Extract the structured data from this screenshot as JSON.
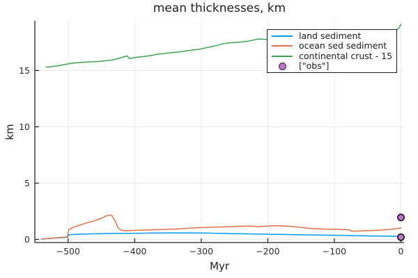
{
  "title": "mean thicknesses, km",
  "xlabel": "Myr",
  "ylabel": "km",
  "colors": {
    "land_sediment": "#009af9",
    "ocean_sed_sediment": "#e26f46",
    "continental_crust": "#3da44d",
    "obs_marker_fill": "#c271d2",
    "obs_marker_stroke": "#1b1b1b",
    "axis": "#262626",
    "grid": "#e9e9e9",
    "text": "#1d1d1d"
  },
  "legend": {
    "items": [
      {
        "label": "land sediment",
        "color": "#009af9",
        "type": "line"
      },
      {
        "label": "ocean sed sediment",
        "color": "#e26f46",
        "type": "line"
      },
      {
        "label": "continental crust - 15",
        "color": "#3da44d",
        "type": "line"
      },
      {
        "label": "[\"obs\"]",
        "color": "#c271d2",
        "type": "marker"
      }
    ]
  },
  "chart_data": {
    "type": "line",
    "title": "mean thicknesses, km",
    "xlabel": "Myr",
    "ylabel": "km",
    "xlim": [
      -550,
      4.7
    ],
    "ylim": [
      -0.28,
      19.41
    ],
    "xticks": [
      -500,
      -400,
      -300,
      -200,
      -100,
      0
    ],
    "yticks": [
      0,
      5,
      10,
      15
    ],
    "grid": true,
    "legend_position": "top-right",
    "series": [
      {
        "name": "land sediment",
        "color": "#009af9",
        "points": [
          [
            -540,
            0.02
          ],
          [
            -532,
            0.07
          ],
          [
            -524,
            0.11
          ],
          [
            -516,
            0.14
          ],
          [
            -508,
            0.16
          ],
          [
            -501,
            0.18
          ],
          [
            -499,
            0.42
          ],
          [
            -490,
            0.45
          ],
          [
            -480,
            0.47
          ],
          [
            -470,
            0.48
          ],
          [
            -460,
            0.5
          ],
          [
            -450,
            0.51
          ],
          [
            -440,
            0.52
          ],
          [
            -430,
            0.53
          ],
          [
            -420,
            0.53
          ],
          [
            -410,
            0.54
          ],
          [
            -400,
            0.55
          ],
          [
            -390,
            0.55
          ],
          [
            -380,
            0.56
          ],
          [
            -370,
            0.57
          ],
          [
            -360,
            0.57
          ],
          [
            -350,
            0.58
          ],
          [
            -340,
            0.58
          ],
          [
            -330,
            0.58
          ],
          [
            -320,
            0.58
          ],
          [
            -310,
            0.57
          ],
          [
            -300,
            0.57
          ],
          [
            -290,
            0.56
          ],
          [
            -280,
            0.55
          ],
          [
            -270,
            0.54
          ],
          [
            -260,
            0.52
          ],
          [
            -250,
            0.51
          ],
          [
            -240,
            0.5
          ],
          [
            -230,
            0.49
          ],
          [
            -220,
            0.48
          ],
          [
            -210,
            0.47
          ],
          [
            -200,
            0.46
          ],
          [
            -190,
            0.45
          ],
          [
            -180,
            0.44
          ],
          [
            -170,
            0.43
          ],
          [
            -160,
            0.42
          ],
          [
            -150,
            0.41
          ],
          [
            -140,
            0.4
          ],
          [
            -130,
            0.39
          ],
          [
            -120,
            0.38
          ],
          [
            -110,
            0.37
          ],
          [
            -100,
            0.37
          ],
          [
            -90,
            0.36
          ],
          [
            -80,
            0.35
          ],
          [
            -70,
            0.33
          ],
          [
            -60,
            0.32
          ],
          [
            -50,
            0.31
          ],
          [
            -40,
            0.3
          ],
          [
            -30,
            0.3
          ],
          [
            -20,
            0.29
          ],
          [
            -10,
            0.28
          ],
          [
            0,
            0.28
          ]
        ]
      },
      {
        "name": "ocean sed sediment",
        "color": "#e26f46",
        "points": [
          [
            -540,
            0.02
          ],
          [
            -532,
            0.07
          ],
          [
            -524,
            0.11
          ],
          [
            -516,
            0.15
          ],
          [
            -508,
            0.18
          ],
          [
            -501,
            0.22
          ],
          [
            -499,
            0.85
          ],
          [
            -495,
            1.0
          ],
          [
            -490,
            1.12
          ],
          [
            -482,
            1.27
          ],
          [
            -472,
            1.47
          ],
          [
            -461,
            1.63
          ],
          [
            -451,
            1.85
          ],
          [
            -443,
            2.08
          ],
          [
            -438,
            2.17
          ],
          [
            -434,
            2.1
          ],
          [
            -429,
            1.6
          ],
          [
            -425,
            1.05
          ],
          [
            -421,
            0.83
          ],
          [
            -414,
            0.77
          ],
          [
            -407,
            0.79
          ],
          [
            -400,
            0.8
          ],
          [
            -390,
            0.82
          ],
          [
            -380,
            0.84
          ],
          [
            -370,
            0.86
          ],
          [
            -360,
            0.88
          ],
          [
            -350,
            0.9
          ],
          [
            -340,
            0.92
          ],
          [
            -330,
            0.95
          ],
          [
            -320,
            0.99
          ],
          [
            -310,
            1.02
          ],
          [
            -300,
            1.05
          ],
          [
            -290,
            1.07
          ],
          [
            -280,
            1.09
          ],
          [
            -270,
            1.1
          ],
          [
            -260,
            1.12
          ],
          [
            -250,
            1.14
          ],
          [
            -240,
            1.17
          ],
          [
            -230,
            1.19
          ],
          [
            -220,
            1.17
          ],
          [
            -215,
            1.13
          ],
          [
            -210,
            1.15
          ],
          [
            -200,
            1.18
          ],
          [
            -190,
            1.22
          ],
          [
            -183,
            1.22
          ],
          [
            -175,
            1.19
          ],
          [
            -165,
            1.15
          ],
          [
            -155,
            1.09
          ],
          [
            -145,
            1.02
          ],
          [
            -135,
            0.97
          ],
          [
            -125,
            0.94
          ],
          [
            -115,
            0.92
          ],
          [
            -105,
            0.9
          ],
          [
            -95,
            0.89
          ],
          [
            -85,
            0.87
          ],
          [
            -78,
            0.85
          ],
          [
            -74,
            0.73
          ],
          [
            -65,
            0.74
          ],
          [
            -55,
            0.77
          ],
          [
            -45,
            0.79
          ],
          [
            -35,
            0.82
          ],
          [
            -25,
            0.85
          ],
          [
            -15,
            0.9
          ],
          [
            -5,
            0.97
          ],
          [
            0,
            1.02
          ]
        ]
      },
      {
        "name": "continental crust - 15",
        "color": "#3da44d",
        "points": [
          [
            -533,
            15.3
          ],
          [
            -524,
            15.34
          ],
          [
            -515,
            15.42
          ],
          [
            -506,
            15.52
          ],
          [
            -497,
            15.62
          ],
          [
            -488,
            15.68
          ],
          [
            -479,
            15.72
          ],
          [
            -470,
            15.75
          ],
          [
            -461,
            15.78
          ],
          [
            -452,
            15.82
          ],
          [
            -443,
            15.87
          ],
          [
            -434,
            15.93
          ],
          [
            -425,
            16.05
          ],
          [
            -417,
            16.2
          ],
          [
            -411,
            16.3
          ],
          [
            -408,
            16.05
          ],
          [
            -404,
            16.1
          ],
          [
            -398,
            16.17
          ],
          [
            -390,
            16.22
          ],
          [
            -382,
            16.28
          ],
          [
            -374,
            16.35
          ],
          [
            -366,
            16.44
          ],
          [
            -358,
            16.49
          ],
          [
            -350,
            16.55
          ],
          [
            -342,
            16.6
          ],
          [
            -334,
            16.64
          ],
          [
            -326,
            16.71
          ],
          [
            -318,
            16.78
          ],
          [
            -310,
            16.84
          ],
          [
            -302,
            16.9
          ],
          [
            -294,
            17.0
          ],
          [
            -286,
            17.1
          ],
          [
            -278,
            17.2
          ],
          [
            -270,
            17.33
          ],
          [
            -262,
            17.42
          ],
          [
            -254,
            17.47
          ],
          [
            -246,
            17.5
          ],
          [
            -238,
            17.54
          ],
          [
            -230,
            17.6
          ],
          [
            -222,
            17.7
          ],
          [
            -214,
            17.8
          ],
          [
            -206,
            17.78
          ],
          [
            -198,
            17.73
          ],
          [
            -190,
            17.7
          ],
          [
            -180,
            17.72
          ],
          [
            -170,
            17.74
          ],
          [
            -160,
            17.76
          ],
          [
            -150,
            17.78
          ],
          [
            -140,
            17.8
          ],
          [
            -130,
            17.83
          ],
          [
            -120,
            17.85
          ],
          [
            -110,
            17.88
          ],
          [
            -100,
            17.9
          ],
          [
            -90,
            17.93
          ],
          [
            -80,
            17.97
          ],
          [
            -70,
            18.0
          ],
          [
            -60,
            18.05
          ],
          [
            -50,
            18.1
          ],
          [
            -40,
            18.17
          ],
          [
            -30,
            18.25
          ],
          [
            -20,
            18.35
          ],
          [
            -10,
            18.5
          ],
          [
            -4,
            18.7
          ],
          [
            0,
            19.1
          ]
        ]
      }
    ],
    "scatter": [
      {
        "name": "[\"obs\"]",
        "color": "#c271d2",
        "stroke": "#1b1b1b",
        "points": [
          [
            0,
            1.95
          ],
          [
            0,
            0.2
          ]
        ]
      }
    ]
  }
}
